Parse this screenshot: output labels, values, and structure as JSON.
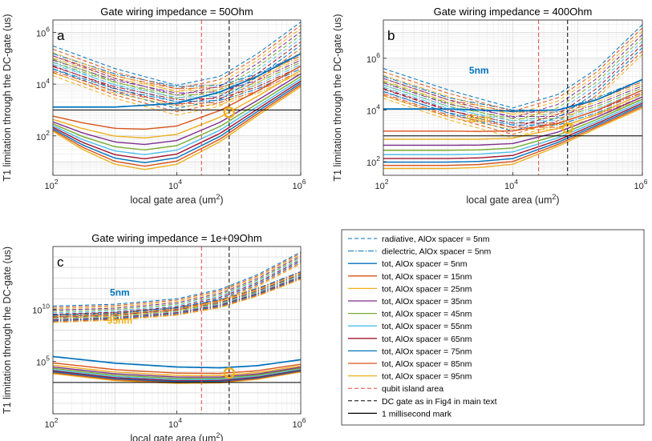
{
  "chart_data": [
    {
      "type": "line",
      "panel_label": "a",
      "title": "Gate wiring impedance = 50Ohm",
      "xlabel": "local gate area (um",
      "xlabel_sup": "2",
      "xlabel_end": ")",
      "ylabel": "T1 limitation through the DC-gate (us)",
      "xscale": "log",
      "yscale": "log",
      "xlim": [
        100,
        1000000
      ],
      "ylim": [
        3,
        3000000
      ],
      "xticks": [
        {
          "v": 100,
          "b": "10",
          "e": "2"
        },
        {
          "v": 10000,
          "b": "10",
          "e": "4"
        },
        {
          "v": 1000000,
          "b": "10",
          "e": "6"
        }
      ],
      "yticks": [
        {
          "v": 100,
          "b": "10",
          "e": "2"
        },
        {
          "v": 10000,
          "b": "10",
          "e": "4"
        },
        {
          "v": 1000000,
          "b": "10",
          "e": "6"
        }
      ],
      "vlines": [
        {
          "x": 25000,
          "color": "#e8463a"
        },
        {
          "x": 70000,
          "color": "#000000"
        }
      ],
      "hline": 1000,
      "marker": {
        "x": 70000,
        "y": 800
      },
      "radiative": {
        "x": [
          100,
          1000,
          10000,
          50000,
          200000,
          1000000
        ],
        "y": [
          300000,
          40000,
          9000,
          20000,
          150000,
          2500000
        ]
      },
      "dielectric": {
        "x": [
          100,
          1000,
          10000,
          50000,
          200000,
          1000000
        ],
        "y": [
          150000,
          25000,
          8000,
          9000,
          25000,
          150000
        ]
      },
      "tot_5": {
        "x": [
          100,
          1000,
          10000,
          50000,
          200000,
          1000000
        ],
        "y": [
          1300,
          1300,
          1800,
          5000,
          20000,
          150000
        ]
      },
      "tot_95": {
        "x": [
          100,
          300,
          1000,
          3000,
          10000,
          50000,
          200000,
          1000000
        ],
        "y": [
          150,
          30,
          8,
          5,
          8,
          60,
          600,
          8000
        ]
      },
      "labels": []
    },
    {
      "type": "line",
      "panel_label": "b",
      "title": "Gate wiring impedance = 400Ohm",
      "xlabel": "local gate area (um",
      "xlabel_sup": "2",
      "xlabel_end": ")",
      "ylabel": "T1 limitation through the DC-gate (us)",
      "xscale": "log",
      "yscale": "log",
      "xlim": [
        100,
        1000000
      ],
      "ylim": [
        30,
        30000000
      ],
      "xticks": [
        {
          "v": 100,
          "b": "10",
          "e": "2"
        },
        {
          "v": 10000,
          "b": "10",
          "e": "4"
        },
        {
          "v": 1000000,
          "b": "10",
          "e": "6"
        }
      ],
      "yticks": [
        {
          "v": 100,
          "b": "10",
          "e": "2"
        },
        {
          "v": 10000,
          "b": "10",
          "e": "4"
        },
        {
          "v": 1000000,
          "b": "10",
          "e": "6"
        }
      ],
      "vlines": [
        {
          "x": 25000,
          "color": "#e8463a"
        },
        {
          "x": 70000,
          "color": "#000000"
        }
      ],
      "hline": 1000,
      "marker": {
        "x": 70000,
        "y": 2000
      },
      "radiative": {
        "x": [
          100,
          1000,
          10000,
          50000,
          200000,
          1000000
        ],
        "y": [
          400000,
          60000,
          12000,
          40000,
          400000,
          20000000
        ]
      },
      "dielectric": {
        "x": [
          100,
          1000,
          10000,
          50000,
          200000,
          1000000
        ],
        "y": [
          200000,
          30000,
          10000,
          10000,
          30000,
          150000
        ]
      },
      "tot_5": {
        "x": [
          100,
          1000,
          10000,
          50000,
          200000,
          1000000
        ],
        "y": [
          11000,
          11000,
          9000,
          10000,
          25000,
          150000
        ]
      },
      "tot_95": {
        "x": [
          100,
          300,
          1000,
          3000,
          10000,
          50000,
          200000,
          1000000
        ],
        "y": [
          55,
          55,
          55,
          60,
          80,
          400,
          2000,
          12000
        ]
      },
      "labels": [
        {
          "text": "5nm",
          "color": "#0072bd",
          "x": 3000,
          "y": 250000
        },
        {
          "text": "95nm",
          "color": "#edb120",
          "x": 3000,
          "y": 3500
        }
      ]
    },
    {
      "type": "line",
      "panel_label": "c",
      "title": "Gate wiring impedance = 1e+09Ohm",
      "xlabel": "local gate area (um",
      "xlabel_sup": "2",
      "xlabel_end": ")",
      "ylabel": "T1 limitation through the DC-gate (us)",
      "xscale": "log",
      "yscale": "log",
      "xlim": [
        100,
        1000000
      ],
      "ylim": [
        1,
        10000000000000000
      ],
      "xticks": [
        {
          "v": 100,
          "b": "10",
          "e": "2"
        },
        {
          "v": 10000,
          "b": "10",
          "e": "4"
        },
        {
          "v": 1000000,
          "b": "10",
          "e": "6"
        }
      ],
      "yticks": [
        {
          "v": 100000,
          "b": "10",
          "e": "5"
        },
        {
          "v": 10000000000,
          "b": "10",
          "e": "10"
        }
      ],
      "vlines": [
        {
          "x": 25000,
          "color": "#e8463a"
        },
        {
          "x": 70000,
          "color": "#000000"
        }
      ],
      "hline": 1000,
      "marker": {
        "x": 70000,
        "y": 8000
      },
      "radiative": {
        "x": [
          100,
          1000,
          10000,
          50000,
          200000,
          1000000
        ],
        "y": [
          20000000000,
          30000000000,
          100000000000,
          800000000000,
          20000000000000,
          3000000000000000
        ]
      },
      "dielectric": {
        "x": [
          100,
          1000,
          10000,
          50000,
          200000,
          1000000
        ],
        "y": [
          3000000000,
          5000000000,
          15000000000,
          80000000000,
          1000000000000,
          40000000000000
        ]
      },
      "tot_5": {
        "x": [
          100,
          1000,
          10000,
          50000,
          200000,
          1000000
        ],
        "y": [
          300000,
          70000,
          30000,
          25000,
          40000,
          150000
        ]
      },
      "tot_95": {
        "x": [
          100,
          1000,
          10000,
          50000,
          200000,
          1000000
        ],
        "y": [
          7000,
          1500,
          800,
          900,
          2000,
          10000
        ]
      },
      "labels": [
        {
          "text": "5nm",
          "color": "#0072bd",
          "x": 1200,
          "y": 200000000000
        },
        {
          "text": "95nm",
          "color": "#edb120",
          "x": 1200,
          "y": 400000000
        }
      ]
    }
  ],
  "spacers_nm": [
    5,
    15,
    25,
    35,
    45,
    55,
    65,
    75,
    85,
    95
  ],
  "series_colors": [
    "#0072bd",
    "#d95319",
    "#edb120",
    "#7e2f8e",
    "#77ac30",
    "#4dbeee",
    "#a2142f",
    "#0072bd",
    "#d95319",
    "#edb120"
  ],
  "legend": [
    {
      "label": "radiative, AlOx spacer = 5nm",
      "color": "#0072bd",
      "style": "dashed"
    },
    {
      "label": "dielectric, AlOx spacer = 5nm",
      "color": "#0072bd",
      "style": "dashdot"
    },
    {
      "label": "tot, AlOx spacer = 5nm",
      "color": "#0072bd",
      "style": "solid"
    },
    {
      "label": "tot, AlOx spacer = 15nm",
      "color": "#d95319",
      "style": "solid"
    },
    {
      "label": "tot, AlOx spacer = 25nm",
      "color": "#edb120",
      "style": "solid"
    },
    {
      "label": "tot, AlOx spacer = 35nm",
      "color": "#7e2f8e",
      "style": "solid"
    },
    {
      "label": "tot, AlOx spacer = 45nm",
      "color": "#77ac30",
      "style": "solid"
    },
    {
      "label": "tot, AlOx spacer = 55nm",
      "color": "#4dbeee",
      "style": "solid"
    },
    {
      "label": "tot, AlOx spacer = 65nm",
      "color": "#a2142f",
      "style": "solid"
    },
    {
      "label": "tot, AlOx spacer = 75nm",
      "color": "#0072bd",
      "style": "solid"
    },
    {
      "label": "tot, AlOx spacer = 85nm",
      "color": "#d95319",
      "style": "solid"
    },
    {
      "label": "tot, AlOx spacer = 95nm",
      "color": "#edb120",
      "style": "solid"
    },
    {
      "label": "qubit island area",
      "color": "#e8463a",
      "style": "dashed"
    },
    {
      "label": "DC gate as in Fig4 in main text",
      "color": "#000000",
      "style": "dashed"
    },
    {
      "label": "1 millisecond mark",
      "color": "#000000",
      "style": "solid"
    }
  ]
}
